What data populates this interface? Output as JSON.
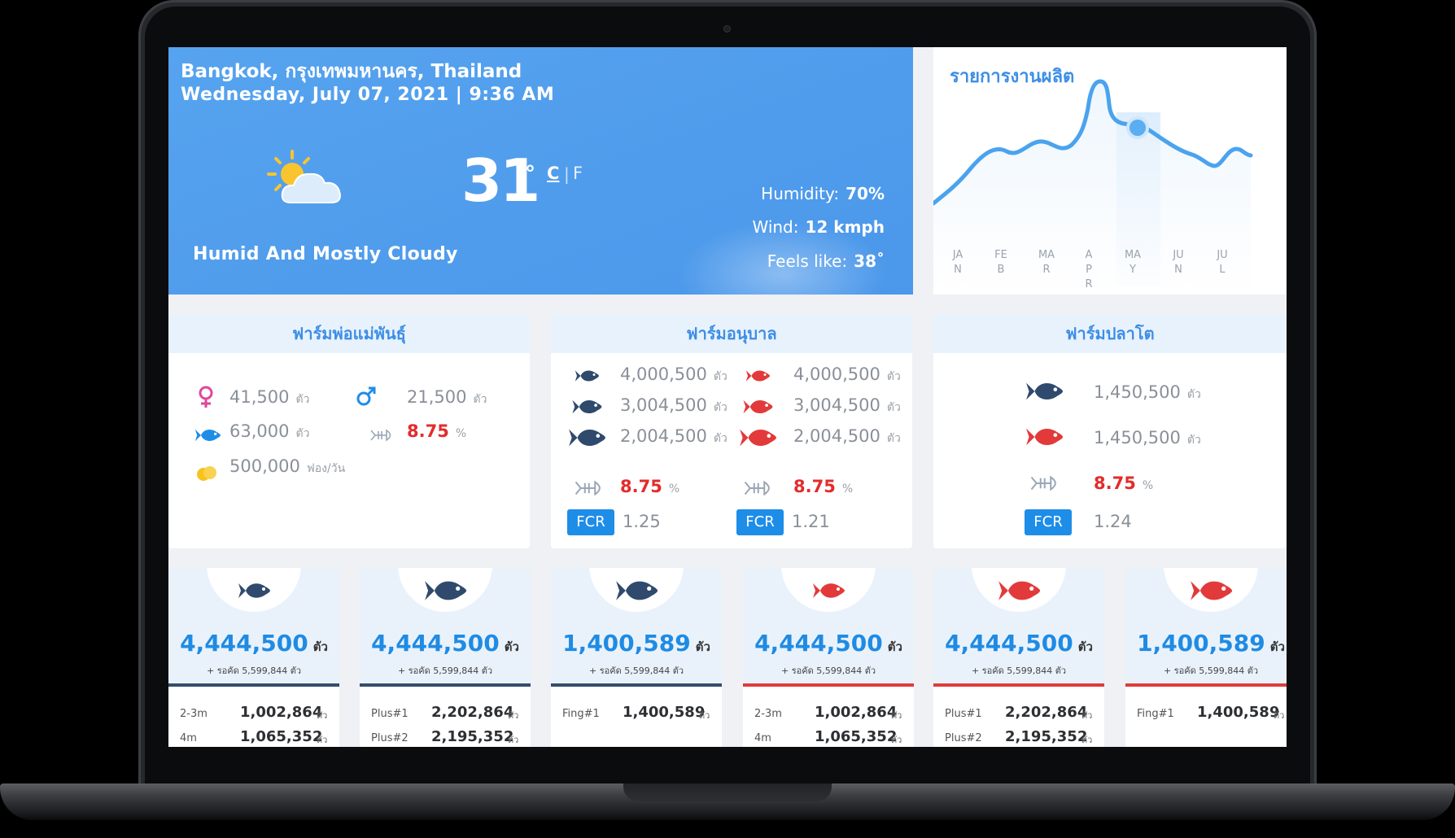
{
  "weather": {
    "location": "Bangkok, กรุงเทพมหานคร, Thailand",
    "datetime": "Wednesday, July 07, 2021 | 9:36 AM",
    "temperature": "31",
    "degree": "°",
    "unit_c": "C",
    "unit_sep": "|",
    "unit_f": "F",
    "condition": "Humid And Mostly Cloudy",
    "humidity_label": "Humidity:",
    "humidity_value": "70%",
    "wind_label": "Wind:",
    "wind_value": "12 kmph",
    "feels_label": "Feels like:",
    "feels_value": "38˚",
    "icon": "partly-cloudy-icon"
  },
  "production": {
    "title": "รายการงานผลิต",
    "months": [
      {
        "a": "JA",
        "b": "N",
        "c": ""
      },
      {
        "a": "FE",
        "b": "B",
        "c": ""
      },
      {
        "a": "MA",
        "b": "R",
        "c": ""
      },
      {
        "a": "A",
        "b": "P",
        "c": "R"
      },
      {
        "a": "MA",
        "b": "Y",
        "c": ""
      },
      {
        "a": "JU",
        "b": "N",
        "c": ""
      },
      {
        "a": "JU",
        "b": "L",
        "c": ""
      }
    ]
  },
  "breeder_farm": {
    "title": "ฟาร์มพ่อแม่พันธุ์",
    "female_value": "41,500",
    "male_value": "21,500",
    "fish_value": "63,000",
    "rate_value": "8.75",
    "egg_value": "500,000",
    "unit_fish": "ตัว",
    "unit_percent": "%",
    "unit_egg": "ฟอง/วัน"
  },
  "nursery_farm": {
    "title": "ฟาร์มอนุบาล",
    "left": [
      "4,000,500",
      "3,004,500",
      "2,004,500"
    ],
    "right": [
      "4,000,500",
      "3,004,500",
      "2,004,500"
    ],
    "left_rate": "8.75",
    "right_rate": "8.75",
    "fcr_label": "FCR",
    "left_fcr": "1.25",
    "right_fcr": "1.21",
    "unit_fish": "ตัว",
    "unit_percent": "%"
  },
  "growout_farm": {
    "title": "ฟาร์มปลาโต",
    "blue_value": "1,450,500",
    "red_value": "1,450,500",
    "rate": "8.75",
    "fcr_label": "FCR",
    "fcr": "1.24",
    "unit_fish": "ตัว",
    "unit_percent": "%"
  },
  "tiles": [
    {
      "total": "4,444,500",
      "unit": "ตัว",
      "sub": "+ รอคัด 5,599,844 ตัว",
      "r1l": "2-3m",
      "r1v": "1,002,864",
      "r2l": "4m",
      "r2v": "1,065,352"
    },
    {
      "total": "4,444,500",
      "unit": "ตัว",
      "sub": "+ รอคัด 5,599,844 ตัว",
      "r1l": "Plus#1",
      "r1v": "2,202,864",
      "r2l": "Plus#2",
      "r2v": "2,195,352"
    },
    {
      "total": "1,400,589",
      "unit": "ตัว",
      "sub": "+ รอคัด 5,599,844 ตัว",
      "r1l": "Fing#1",
      "r1v": "1,400,589",
      "r2l": "",
      "r2v": ""
    },
    {
      "total": "4,444,500",
      "unit": "ตัว",
      "sub": "+ รอคัด 5,599,844 ตัว",
      "r1l": "2-3m",
      "r1v": "1,002,864",
      "r2l": "4m",
      "r2v": "1,065,352"
    },
    {
      "total": "4,444,500",
      "unit": "ตัว",
      "sub": "+ รอคัด 5,599,844 ตัว",
      "r1l": "Plus#1",
      "r1v": "2,202,864",
      "r2l": "Plus#2",
      "r2v": "2,195,352"
    },
    {
      "total": "1,400,589",
      "unit": "ตัว",
      "sub": "+ รอคัด 5,599,844 ตัว",
      "r1l": "Fing#1",
      "r1v": "1,400,589",
      "r2l": "",
      "r2v": ""
    }
  ],
  "unit_small": "ตัว",
  "colors": {
    "accent_blue": "#1e8de8",
    "navy_fish": "#2f4a6c",
    "red_fish": "#e23a3a",
    "weather_bg": "#4f9ced"
  }
}
